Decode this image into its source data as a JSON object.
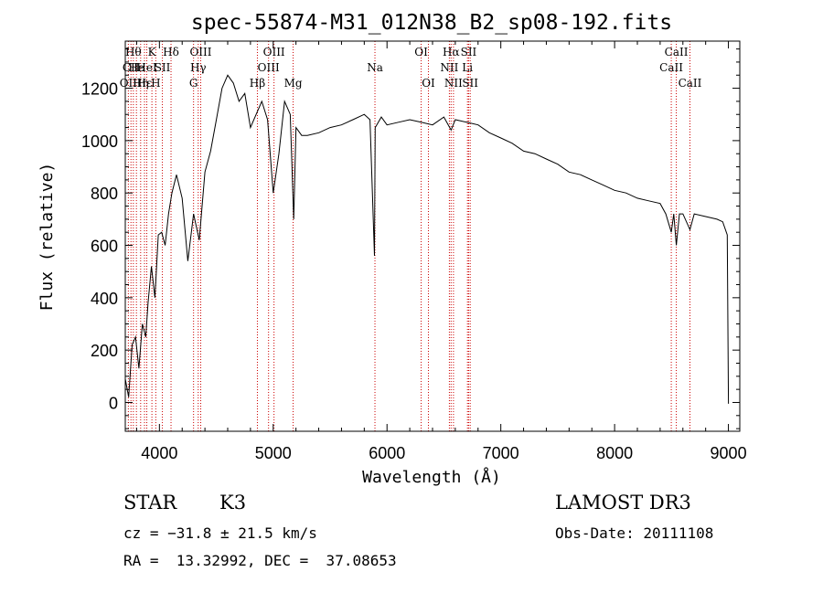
{
  "chart_data": {
    "type": "line",
    "title": "spec-55874-M31_012N38_B2_sp08-192.fits",
    "xlabel": "Wavelength (Å)",
    "ylabel": "Flux (relative)",
    "xlim": [
      3700,
      9100
    ],
    "ylim": [
      -110,
      1380
    ],
    "xticks": [
      4000,
      5000,
      6000,
      7000,
      8000,
      9000
    ],
    "yticks": [
      0,
      200,
      400,
      600,
      800,
      1000,
      1200
    ],
    "xtick_labels": [
      "4000",
      "5000",
      "6000",
      "7000",
      "8000",
      "9000"
    ],
    "ytick_labels": [
      "0",
      "200",
      "400",
      "600",
      "800",
      "1000",
      "1200"
    ],
    "series": [
      {
        "name": "spectrum",
        "x": [
          3700,
          3730,
          3760,
          3790,
          3820,
          3850,
          3880,
          3900,
          3930,
          3960,
          3990,
          4020,
          4050,
          4080,
          4110,
          4150,
          4200,
          4250,
          4300,
          4350,
          4400,
          4450,
          4500,
          4550,
          4600,
          4650,
          4700,
          4750,
          4800,
          4850,
          4900,
          4950,
          5000,
          5050,
          5100,
          5150,
          5180,
          5200,
          5250,
          5300,
          5400,
          5500,
          5600,
          5700,
          5800,
          5850,
          5890,
          5896,
          5910,
          5950,
          6000,
          6100,
          6200,
          6300,
          6400,
          6500,
          6563,
          6600,
          6700,
          6800,
          6900,
          7000,
          7100,
          7200,
          7300,
          7400,
          7500,
          7600,
          7700,
          7800,
          7900,
          8000,
          8100,
          8200,
          8300,
          8400,
          8450,
          8498,
          8520,
          8542,
          8570,
          8600,
          8662,
          8700,
          8800,
          8900,
          8950,
          8990,
          9000
        ],
        "y": [
          90,
          20,
          220,
          250,
          130,
          300,
          250,
          380,
          520,
          400,
          640,
          650,
          600,
          720,
          800,
          870,
          780,
          540,
          720,
          620,
          880,
          960,
          1080,
          1200,
          1250,
          1220,
          1150,
          1180,
          1050,
          1100,
          1150,
          1080,
          800,
          950,
          1150,
          1100,
          700,
          1050,
          1020,
          1020,
          1030,
          1050,
          1060,
          1080,
          1100,
          1080,
          560,
          1050,
          1060,
          1090,
          1060,
          1070,
          1080,
          1070,
          1060,
          1090,
          1040,
          1080,
          1070,
          1060,
          1030,
          1010,
          990,
          960,
          950,
          930,
          910,
          880,
          870,
          850,
          830,
          810,
          800,
          780,
          770,
          760,
          720,
          650,
          720,
          600,
          720,
          720,
          660,
          720,
          710,
          700,
          690,
          640,
          -5
        ]
      }
    ],
    "line_markers": [
      {
        "x": 3727,
        "label": "OII",
        "row": 3
      },
      {
        "x": 3750,
        "label": "CII",
        "row": 2
      },
      {
        "x": 3771,
        "label": "Hθ",
        "row": 1
      },
      {
        "x": 3798,
        "label": "He",
        "row": 2
      },
      {
        "x": 3835,
        "label": "Hη",
        "row": 3
      },
      {
        "x": 3869,
        "label": "Hε",
        "row": 3
      },
      {
        "x": 3889,
        "label": "HeI",
        "row": 2
      },
      {
        "x": 3934,
        "label": "K",
        "row": 1
      },
      {
        "x": 3968,
        "label": "H",
        "row": 3
      },
      {
        "x": 4026,
        "label": "SII",
        "row": 2
      },
      {
        "x": 4102,
        "label": "Hδ",
        "row": 1
      },
      {
        "x": 4300,
        "label": "G",
        "row": 3
      },
      {
        "x": 4341,
        "label": "Hγ",
        "row": 2
      },
      {
        "x": 4363,
        "label": "OIII",
        "row": 1
      },
      {
        "x": 4861,
        "label": "Hβ",
        "row": 3
      },
      {
        "x": 4959,
        "label": "OIII",
        "row": 2
      },
      {
        "x": 5007,
        "label": "OIII",
        "row": 1
      },
      {
        "x": 5175,
        "label": "Mg",
        "row": 3
      },
      {
        "x": 5894,
        "label": "Na",
        "row": 2
      },
      {
        "x": 6300,
        "label": "OI",
        "row": 1
      },
      {
        "x": 6364,
        "label": "OI",
        "row": 3
      },
      {
        "x": 6548,
        "label": "NII",
        "row": 2
      },
      {
        "x": 6563,
        "label": "Hα",
        "row": 1
      },
      {
        "x": 6584,
        "label": "NII",
        "row": 3
      },
      {
        "x": 6707,
        "label": "Li",
        "row": 2
      },
      {
        "x": 6717,
        "label": "SII",
        "row": 1
      },
      {
        "x": 6731,
        "label": "SII",
        "row": 3
      },
      {
        "x": 8498,
        "label": "CaII",
        "row": 2
      },
      {
        "x": 8542,
        "label": "CaII",
        "row": 1
      },
      {
        "x": 8662,
        "label": "CaII",
        "row": 3
      }
    ]
  },
  "info": {
    "class_label": "STAR",
    "subclass": "K3",
    "survey": "LAMOST DR3",
    "cz_line": "cz = −31.8 ± 21.5 km/s",
    "obs_date_line": "Obs-Date: 20111108",
    "coords_line": "RA =  13.32992, DEC =  37.08653"
  }
}
